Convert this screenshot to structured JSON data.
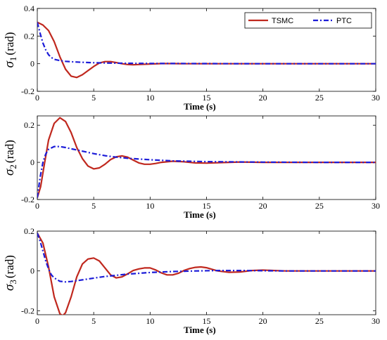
{
  "chart_data": [
    {
      "type": "line",
      "ylabel_symbol": "σ",
      "ylabel_sub": "1",
      "ylabel_unit": "(rad)",
      "xlabel": "Time (s)",
      "xlim": [
        0,
        30
      ],
      "ylim": [
        -0.2,
        0.4
      ],
      "xticks": [
        "0",
        "5",
        "10",
        "15",
        "20",
        "25",
        "30"
      ],
      "yticks": [
        "0.4",
        "0.2",
        "0",
        "-0.2"
      ],
      "legend": "top-right",
      "series": [
        {
          "name": "TSMC",
          "color": "#c0281e",
          "dash": "solid",
          "x": [
            0,
            0.5,
            1,
            1.5,
            2,
            2.5,
            3,
            3.5,
            4,
            4.5,
            5,
            5.5,
            6,
            6.5,
            7,
            7.5,
            8,
            8.5,
            9,
            10,
            11,
            12,
            13,
            15,
            20,
            25,
            30
          ],
          "y": [
            0.3,
            0.28,
            0.24,
            0.16,
            0.05,
            -0.04,
            -0.09,
            -0.1,
            -0.08,
            -0.05,
            -0.02,
            0.005,
            0.015,
            0.015,
            0.008,
            0,
            -0.006,
            -0.008,
            -0.006,
            -0.002,
            0.001,
            0.001,
            0,
            0,
            0,
            0,
            0
          ]
        },
        {
          "name": "PTC",
          "color": "#1c1cd8",
          "dash": "dashdot",
          "x": [
            0,
            0.25,
            0.5,
            0.75,
            1,
            1.25,
            1.5,
            2,
            2.5,
            3,
            4,
            5,
            6,
            8,
            10,
            15,
            20,
            25,
            30
          ],
          "y": [
            0.3,
            0.22,
            0.15,
            0.1,
            0.065,
            0.045,
            0.032,
            0.022,
            0.017,
            0.014,
            0.01,
            0.007,
            0.005,
            0.003,
            0.002,
            0.001,
            0,
            0,
            0
          ]
        }
      ]
    },
    {
      "type": "line",
      "ylabel_symbol": "σ",
      "ylabel_sub": "2",
      "ylabel_unit": "(rad)",
      "xlabel": "Time (s)",
      "xlim": [
        0,
        30
      ],
      "ylim": [
        -0.2,
        0.25
      ],
      "xticks": [
        "0",
        "5",
        "10",
        "15",
        "20",
        "25",
        "30"
      ],
      "yticks": [
        "0.2",
        "0",
        "-0.2"
      ],
      "series": [
        {
          "name": "TSMC",
          "color": "#c0281e",
          "dash": "solid",
          "x": [
            0,
            0.3,
            0.6,
            1,
            1.5,
            2,
            2.5,
            3,
            3.5,
            4,
            4.5,
            5,
            5.5,
            6,
            6.5,
            7,
            7.5,
            8,
            8.5,
            9,
            9.5,
            10,
            10.5,
            11,
            12,
            13,
            14,
            15,
            16,
            18,
            20,
            25,
            30
          ],
          "y": [
            -0.19,
            -0.13,
            -0.02,
            0.12,
            0.21,
            0.24,
            0.22,
            0.16,
            0.08,
            0.02,
            -0.02,
            -0.035,
            -0.03,
            -0.01,
            0.015,
            0.03,
            0.035,
            0.028,
            0.012,
            -0.003,
            -0.01,
            -0.01,
            -0.006,
            0,
            0.006,
            0.003,
            -0.003,
            -0.004,
            -0.002,
            0.002,
            0,
            0,
            0
          ]
        },
        {
          "name": "PTC",
          "color": "#1c1cd8",
          "dash": "dashdot",
          "x": [
            0,
            0.25,
            0.5,
            0.75,
            1,
            1.5,
            2,
            2.5,
            3,
            4,
            5,
            6,
            7,
            8,
            10,
            12,
            15,
            20,
            25,
            30
          ],
          "y": [
            -0.19,
            -0.08,
            0,
            0.045,
            0.07,
            0.085,
            0.085,
            0.08,
            0.073,
            0.06,
            0.047,
            0.036,
            0.028,
            0.022,
            0.014,
            0.008,
            0.004,
            0.001,
            0,
            0
          ]
        }
      ]
    },
    {
      "type": "line",
      "ylabel_symbol": "σ",
      "ylabel_sub": "3",
      "ylabel_unit": "(rad)",
      "xlabel": "Time (s)",
      "xlim": [
        0,
        30
      ],
      "ylim": [
        -0.22,
        0.2
      ],
      "xticks": [
        "0",
        "5",
        "10",
        "15",
        "20",
        "25",
        "30"
      ],
      "yticks": [
        "0.2",
        "0",
        "-0.2"
      ],
      "series": [
        {
          "name": "TSMC",
          "color": "#c0281e",
          "dash": "solid",
          "x": [
            0,
            0.5,
            1,
            1.5,
            2,
            2.25,
            2.5,
            3,
            3.5,
            4,
            4.5,
            5,
            5.5,
            6,
            6.5,
            7,
            7.5,
            8,
            8.5,
            9,
            9.5,
            10,
            10.5,
            11,
            11.5,
            12,
            12.5,
            13,
            13.5,
            14,
            14.5,
            15,
            15.5,
            16,
            17,
            18,
            19,
            20,
            21,
            22,
            25,
            30
          ],
          "y": [
            0.19,
            0.14,
            0.02,
            -0.13,
            -0.215,
            -0.225,
            -0.21,
            -0.13,
            -0.03,
            0.035,
            0.06,
            0.065,
            0.05,
            0.015,
            -0.02,
            -0.035,
            -0.03,
            -0.015,
            0.002,
            0.01,
            0.015,
            0.015,
            0.005,
            -0.01,
            -0.02,
            -0.02,
            -0.012,
            0.002,
            0.012,
            0.018,
            0.02,
            0.016,
            0.008,
            0,
            -0.007,
            -0.005,
            0.002,
            0.004,
            0.002,
            0,
            0,
            0
          ]
        },
        {
          "name": "PTC",
          "color": "#1c1cd8",
          "dash": "dashdot",
          "x": [
            0,
            0.25,
            0.5,
            0.75,
            1,
            1.25,
            1.5,
            2,
            2.5,
            3,
            4,
            5,
            6,
            8,
            10,
            12,
            14,
            16,
            18,
            20,
            22,
            25,
            30
          ],
          "y": [
            0.19,
            0.15,
            0.1,
            0.05,
            0.01,
            -0.02,
            -0.035,
            -0.052,
            -0.055,
            -0.053,
            -0.045,
            -0.036,
            -0.028,
            -0.016,
            -0.008,
            -0.003,
            0,
            0.002,
            0.002,
            0.001,
            0,
            0,
            0
          ]
        }
      ]
    }
  ]
}
